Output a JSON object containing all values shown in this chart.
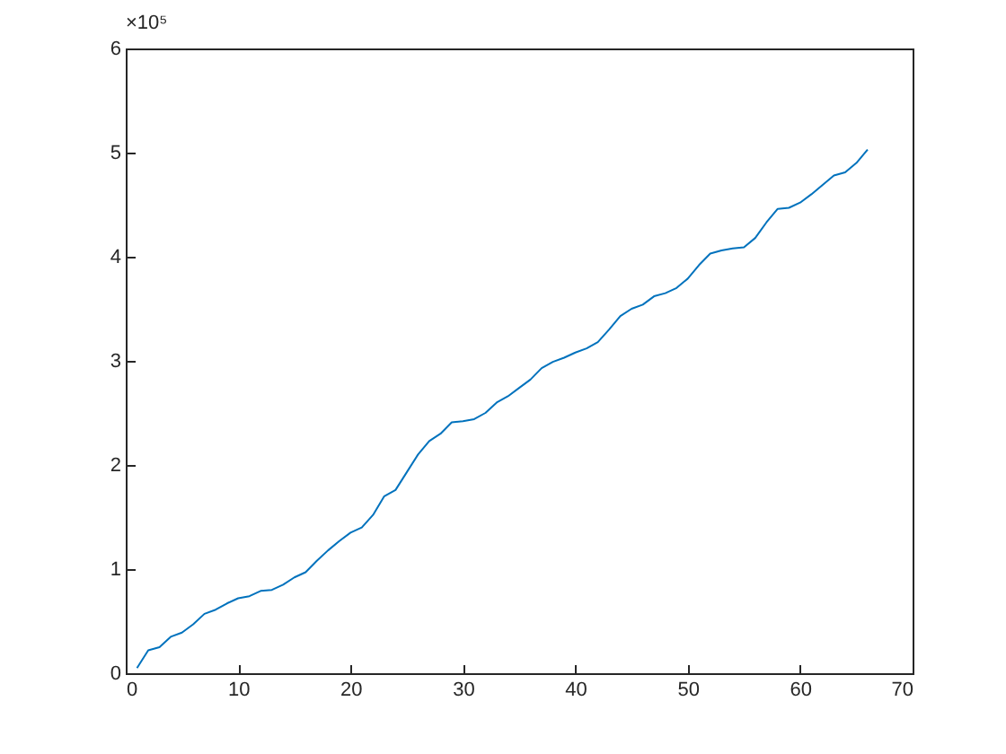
{
  "chart_data": {
    "type": "line",
    "x": [
      1,
      2,
      3,
      4,
      5,
      6,
      7,
      8,
      9,
      10,
      11,
      12,
      13,
      14,
      15,
      16,
      17,
      18,
      19,
      20,
      21,
      22,
      23,
      24,
      25,
      26,
      27,
      28,
      29,
      30,
      31,
      32,
      33,
      34,
      35,
      36,
      37,
      38,
      39,
      40,
      41,
      42,
      43,
      44,
      45,
      46,
      47,
      48,
      49,
      50,
      51,
      52,
      53,
      54,
      55,
      56,
      57,
      58,
      59,
      60,
      61,
      62,
      63,
      64,
      65,
      66
    ],
    "series": [
      {
        "color": "#0072bd",
        "values": [
          0.05,
          0.22,
          0.25,
          0.35,
          0.39,
          0.47,
          0.57,
          0.61,
          0.67,
          0.72,
          0.74,
          0.79,
          0.8,
          0.85,
          0.92,
          0.97,
          1.08,
          1.18,
          1.27,
          1.35,
          1.4,
          1.52,
          1.7,
          1.76,
          1.93,
          2.1,
          2.23,
          2.3,
          2.41,
          2.42,
          2.44,
          2.5,
          2.6,
          2.66,
          2.74,
          2.82,
          2.93,
          2.99,
          3.03,
          3.08,
          3.12,
          3.18,
          3.3,
          3.43,
          3.5,
          3.54,
          3.62,
          3.65,
          3.7,
          3.79,
          3.92,
          4.03,
          4.06,
          4.08,
          4.09,
          4.18,
          4.33,
          4.46,
          4.47,
          4.52,
          4.6,
          4.69,
          4.78,
          4.81,
          4.9,
          5.03
        ]
      }
    ],
    "xlim": [
      0,
      70
    ],
    "xticks": [
      0,
      10,
      20,
      30,
      40,
      50,
      60,
      70
    ],
    "ylim": [
      0,
      6
    ],
    "yticks": [
      0,
      1,
      2,
      3,
      4,
      5,
      6
    ],
    "annotations": [
      "×10⁵"
    ],
    "line_style": "solid"
  }
}
